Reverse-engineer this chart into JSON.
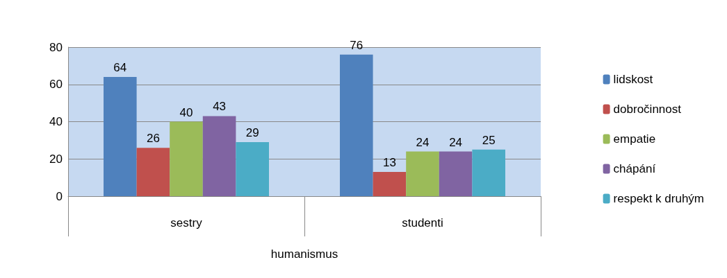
{
  "chart_data": {
    "type": "bar",
    "xlabel": "humanismus",
    "categories": [
      "sestry",
      "studenti"
    ],
    "series": [
      {
        "name": "lidskost",
        "color": "#4f81bd",
        "values": [
          64,
          76
        ]
      },
      {
        "name": "dobročinnost",
        "color": "#c0504d",
        "values": [
          26,
          13
        ]
      },
      {
        "name": "empatie",
        "color": "#9bbb59",
        "values": [
          40,
          24
        ]
      },
      {
        "name": "chápání",
        "color": "#8064a2",
        "values": [
          43,
          24
        ]
      },
      {
        "name": "respekt k druhým",
        "color": "#4bacc6",
        "values": [
          29,
          25
        ]
      }
    ],
    "ylim": [
      0,
      80
    ],
    "yticks": [
      0,
      20,
      40,
      60,
      80
    ],
    "grid": "y",
    "legend": "right",
    "data_labels": true
  }
}
